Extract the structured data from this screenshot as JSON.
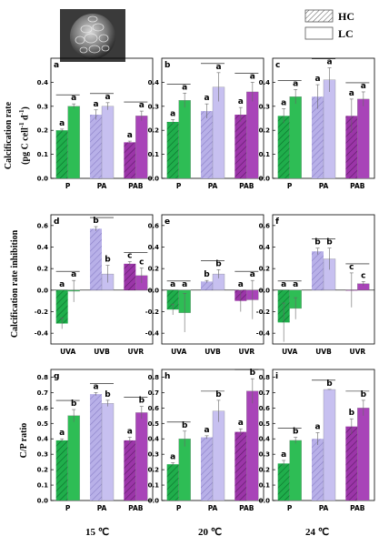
{
  "legend": {
    "hc": "HC",
    "lc": "LC"
  },
  "row_labels": {
    "row1_a": "Calcification rate",
    "row1_b": "(pg C cell",
    "row1_sup1": "-1",
    "row1_mid": " d",
    "row1_sup2": "-1",
    "row1_end": ")",
    "row2": "Calcification rate inhibition",
    "row3": "C/P ratio"
  },
  "column_labels": [
    "15 ℃",
    "20 ℃",
    "24 ℃"
  ],
  "colors": {
    "green_hc": "#1fae4b",
    "green_lc": "#2ebd55",
    "lavender_hc": "#b8b0e8",
    "lavender_lc": "#c7c0f0",
    "purple_hc": "#9b35a8",
    "purple_lc": "#a844b8"
  },
  "chart_data": [
    {
      "panel": "a",
      "type": "bar",
      "categories": [
        "P",
        "PA",
        "PAB"
      ],
      "ylim": [
        0,
        0.5
      ],
      "yticks": [
        "0.0",
        "0.1",
        "0.2",
        "0.3",
        "0.4"
      ],
      "series": [
        {
          "name": "HC",
          "values": [
            0.2,
            0.265,
            0.15
          ],
          "errors": [
            0.005,
            0.02,
            0.005
          ],
          "letters": [
            "a",
            "a",
            "a"
          ]
        },
        {
          "name": "LC",
          "values": [
            0.3,
            0.3,
            0.26
          ],
          "errors": [
            0.01,
            0.015,
            0.02
          ],
          "letters": [
            "a",
            "a",
            "a"
          ]
        }
      ]
    },
    {
      "panel": "b",
      "type": "bar",
      "categories": [
        "P",
        "PA",
        "PAB"
      ],
      "ylim": [
        0,
        0.5
      ],
      "yticks": [
        "0.0",
        "0.1",
        "0.2",
        "0.3",
        "0.4"
      ],
      "series": [
        {
          "name": "HC",
          "values": [
            0.235,
            0.28,
            0.265
          ],
          "errors": [
            0.01,
            0.03,
            0.03
          ],
          "letters": [
            "a",
            "a",
            "a"
          ]
        },
        {
          "name": "LC",
          "values": [
            0.325,
            0.38,
            0.36
          ],
          "errors": [
            0.03,
            0.06,
            0.04
          ],
          "letters": [
            "a",
            "a",
            "a"
          ]
        }
      ]
    },
    {
      "panel": "c",
      "type": "bar",
      "categories": [
        "P",
        "PA",
        "PAB"
      ],
      "ylim": [
        0,
        0.5
      ],
      "yticks": [
        "0.0",
        "0.1",
        "0.2",
        "0.3",
        "0.4"
      ],
      "series": [
        {
          "name": "HC",
          "values": [
            0.26,
            0.34,
            0.26
          ],
          "errors": [
            0.03,
            0.05,
            0.07
          ],
          "letters": [
            "a",
            "a",
            "a"
          ]
        },
        {
          "name": "LC",
          "values": [
            0.34,
            0.41,
            0.33
          ],
          "errors": [
            0.03,
            0.05,
            0.03
          ],
          "letters": [
            "a",
            "a",
            "a"
          ]
        }
      ]
    },
    {
      "panel": "d",
      "type": "bar",
      "categories": [
        "UVA",
        "UVB",
        "UVR"
      ],
      "ylim": [
        -0.5,
        0.7
      ],
      "yticks": [
        "-0.4",
        "-0.2",
        "0.0",
        "0.2",
        "0.4",
        "0.6"
      ],
      "series": [
        {
          "name": "HC",
          "values": [
            -0.31,
            0.57,
            0.245
          ],
          "errors": [
            0.05,
            0.02,
            0.02
          ],
          "letters": [
            "a",
            "b",
            "c"
          ]
        },
        {
          "name": "LC",
          "values": [
            -0.01,
            0.15,
            0.135
          ],
          "errors": [
            0.1,
            0.08,
            0.07
          ],
          "letters": [
            "a",
            "b",
            "c"
          ]
        }
      ]
    },
    {
      "panel": "e",
      "type": "bar",
      "categories": [
        "UVA",
        "UVB",
        "UVR"
      ],
      "ylim": [
        -0.5,
        0.7
      ],
      "yticks": [
        "-0.4",
        "-0.2",
        "0.0",
        "0.2",
        "0.4",
        "0.6"
      ],
      "series": [
        {
          "name": "HC",
          "values": [
            -0.18,
            0.08,
            -0.1
          ],
          "errors": [
            0.05,
            0.01,
            0.1
          ],
          "letters": [
            "a",
            "b",
            "a"
          ]
        },
        {
          "name": "LC",
          "values": [
            -0.21,
            0.15,
            -0.09
          ],
          "errors": [
            0.18,
            0.04,
            0.18
          ],
          "letters": [
            "a",
            "b",
            "a"
          ]
        }
      ]
    },
    {
      "panel": "f",
      "type": "bar",
      "categories": [
        "UVA",
        "UVB",
        "UVR"
      ],
      "ylim": [
        -0.5,
        0.7
      ],
      "yticks": [
        "-0.4",
        "-0.2",
        "0.0",
        "0.2",
        "0.4",
        "0.6"
      ],
      "series": [
        {
          "name": "HC",
          "values": [
            -0.3,
            0.36,
            0.0
          ],
          "errors": [
            0.18,
            0.03,
            0.16
          ],
          "letters": [
            "a",
            "b",
            "c"
          ]
        },
        {
          "name": "LC",
          "values": [
            -0.17,
            0.29,
            0.06
          ],
          "errors": [
            0.1,
            0.1,
            0.02
          ],
          "letters": [
            "a",
            "b",
            "c"
          ]
        }
      ]
    },
    {
      "panel": "g",
      "type": "bar",
      "categories": [
        "P",
        "PA",
        "PAB"
      ],
      "ylim": [
        0,
        0.85
      ],
      "yticks": [
        "0.0",
        "0.1",
        "0.2",
        "0.3",
        "0.4",
        "0.5",
        "0.6",
        "0.7",
        "0.8"
      ],
      "series": [
        {
          "name": "HC",
          "values": [
            0.39,
            0.69,
            0.39
          ],
          "errors": [
            0.01,
            0.01,
            0.02
          ],
          "letters": [
            "a",
            "a",
            "a"
          ]
        },
        {
          "name": "LC",
          "values": [
            0.55,
            0.63,
            0.57
          ],
          "errors": [
            0.04,
            0.02,
            0.04
          ],
          "letters": [
            "b",
            "b",
            "b"
          ]
        }
      ]
    },
    {
      "panel": "h",
      "type": "bar",
      "categories": [
        "P",
        "PA",
        "PAB"
      ],
      "ylim": [
        0,
        0.85
      ],
      "yticks": [
        "0.0",
        "0.1",
        "0.2",
        "0.3",
        "0.4",
        "0.5",
        "0.6",
        "0.7",
        "0.8"
      ],
      "series": [
        {
          "name": "HC",
          "values": [
            0.235,
            0.41,
            0.445
          ],
          "errors": [
            0.01,
            0.01,
            0.02
          ],
          "letters": [
            "a",
            "a",
            "a"
          ]
        },
        {
          "name": "LC",
          "values": [
            0.4,
            0.58,
            0.71
          ],
          "errors": [
            0.05,
            0.07,
            0.08
          ],
          "letters": [
            "b",
            "b",
            "b"
          ]
        }
      ]
    },
    {
      "panel": "i",
      "type": "bar",
      "categories": [
        "P",
        "PA",
        "PAB"
      ],
      "ylim": [
        0,
        0.85
      ],
      "yticks": [
        "0.0",
        "0.1",
        "0.2",
        "0.3",
        "0.4",
        "0.5",
        "0.6",
        "0.7",
        "0.8"
      ],
      "series": [
        {
          "name": "HC",
          "values": [
            0.24,
            0.4,
            0.48
          ],
          "errors": [
            0.02,
            0.04,
            0.05
          ],
          "letters": [
            "a",
            "a",
            "b"
          ]
        },
        {
          "name": "LC",
          "values": [
            0.39,
            0.72,
            0.6
          ],
          "errors": [
            0.02,
            0.001,
            0.05
          ],
          "letters": [
            "b",
            "b",
            "b"
          ]
        }
      ]
    }
  ]
}
